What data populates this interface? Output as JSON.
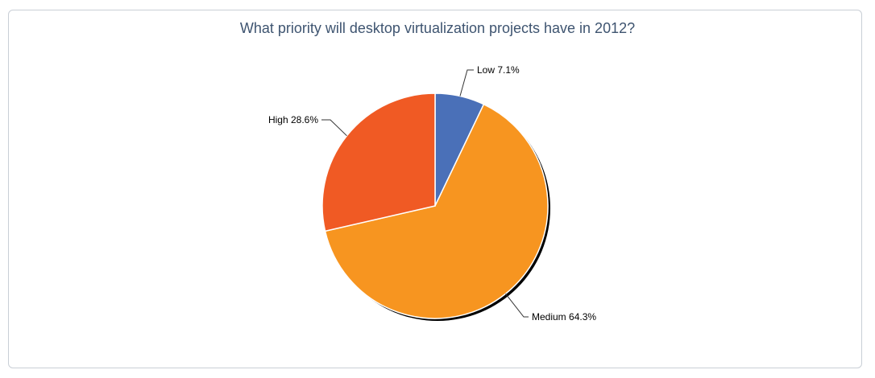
{
  "chart_data": {
    "type": "pie",
    "title": "What priority will desktop virtualization projects have in 2012?",
    "slices": [
      {
        "label": "Low",
        "value": 7.1,
        "display": "Low 7.1%",
        "color": "#4a70b8"
      },
      {
        "label": "Medium",
        "value": 64.3,
        "display": "Medium 64.3%",
        "color": "#f79520"
      },
      {
        "label": "High",
        "value": 28.6,
        "display": "High 28.6%",
        "color": "#f05a24"
      }
    ],
    "legend": "none"
  }
}
